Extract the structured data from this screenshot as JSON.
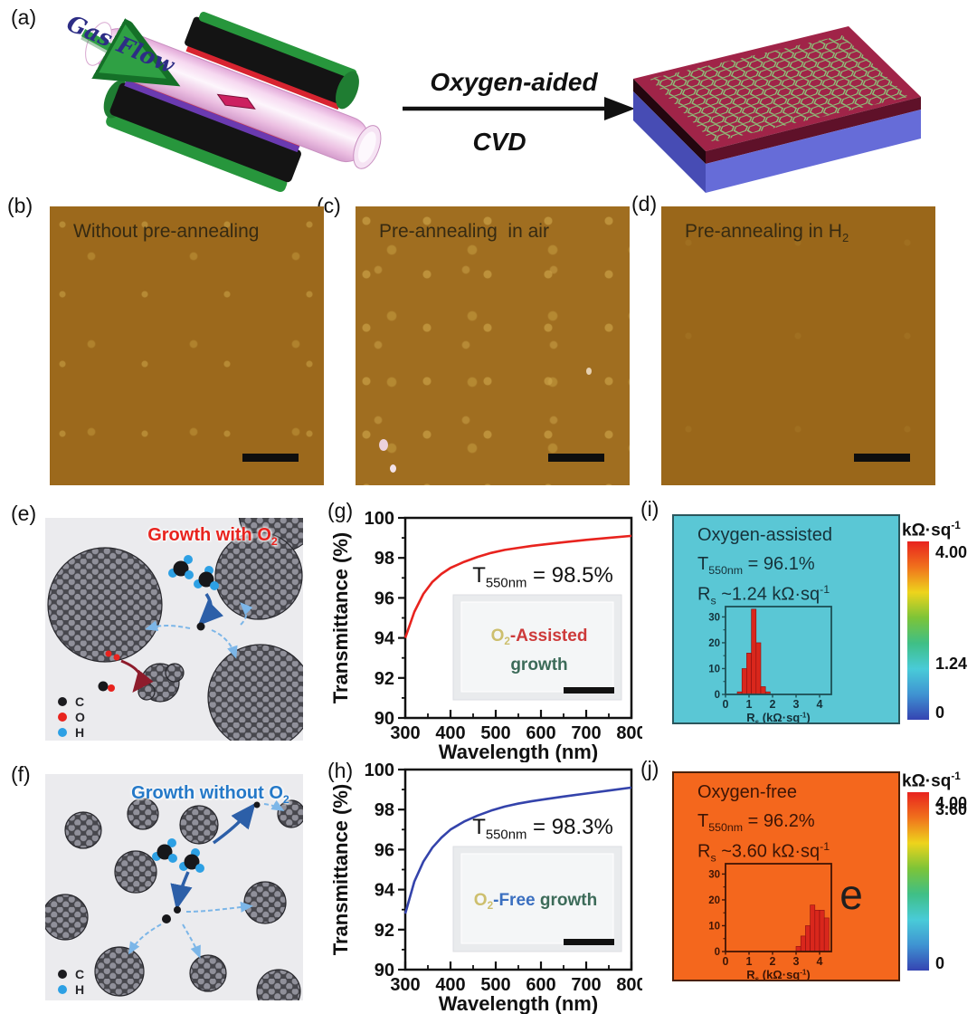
{
  "panels": {
    "a": {
      "label": "(a)",
      "gas_flow": "Gas Flow",
      "process_top": "Oxygen-aided",
      "process_bottom": "CVD"
    },
    "b": {
      "label": "(b)",
      "caption": "Without pre-annealing"
    },
    "c": {
      "label": "(c)",
      "caption": "Pre-annealing  in air"
    },
    "d": {
      "label": "(d)",
      "caption": "Pre-annealing in H_{2}"
    },
    "e": {
      "label": "(e)",
      "title": "Growth with O_{2}",
      "title_color": "#e8231e",
      "legend": [
        {
          "symbol": "C",
          "color": "#1b1b1f"
        },
        {
          "symbol": "O",
          "color": "#e8231e"
        },
        {
          "symbol": "H",
          "color": "#2da0e4"
        }
      ]
    },
    "f": {
      "label": "(f)",
      "title": "Growth without O_{2}",
      "title_color": "#2579c8",
      "legend": [
        {
          "symbol": "C",
          "color": "#1b1b1f"
        },
        {
          "symbol": "H",
          "color": "#2da0e4"
        }
      ]
    },
    "g": {
      "label": "(g)"
    },
    "h": {
      "label": "(h)"
    },
    "i": {
      "label": "(i)",
      "map_color": "#5ac7d5",
      "border_color": "#2a565c",
      "text_color": "#16323a",
      "title": "Oxygen-assisted",
      "t550": "T_{550nm} = 96.1%",
      "rs": "R_{s} ~1.24 kΩ·sq^{-1}"
    },
    "j": {
      "label": "(j)",
      "map_color": "#f4671d",
      "border_color": "#4a2008",
      "text_color": "#3d1505",
      "title": "Oxygen-free",
      "t550": "T_{550nm} = 96.2%",
      "rs": "R_{s} ~3.60 kΩ·sq^{-1}"
    }
  },
  "chart_data": [
    {
      "id": "g",
      "type": "line",
      "xlabel": "Wavelength (nm)",
      "ylabel": "Transmittance (%)",
      "xlim": [
        300,
        800
      ],
      "ylim": [
        90,
        100
      ],
      "xticks": [
        300,
        400,
        500,
        600,
        700,
        800
      ],
      "yticks": [
        90,
        92,
        94,
        96,
        98,
        100
      ],
      "color": "#e8231e",
      "annotation": "T_{550nm} = 98.5%",
      "x": [
        300,
        320,
        340,
        360,
        380,
        400,
        430,
        460,
        490,
        520,
        550,
        580,
        610,
        650,
        700,
        750,
        800
      ],
      "y": [
        94.0,
        95.3,
        96.2,
        96.8,
        97.2,
        97.5,
        97.8,
        98.05,
        98.25,
        98.4,
        98.5,
        98.6,
        98.68,
        98.78,
        98.9,
        99.0,
        99.1
      ],
      "inset": {
        "lines": [
          [
            {
              "text": "O_{2}",
              "color": "#cdbf6e"
            },
            {
              "text": "-Assisted",
              "color": "#cd3a3a"
            }
          ],
          [
            {
              "text": "growth",
              "color": "#3c6b59"
            }
          ]
        ]
      }
    },
    {
      "id": "h",
      "type": "line",
      "xlabel": "Wavelength (nm)",
      "ylabel": "Transmittance (%)",
      "xlim": [
        300,
        800
      ],
      "ylim": [
        90,
        100
      ],
      "xticks": [
        300,
        400,
        500,
        600,
        700,
        800
      ],
      "yticks": [
        90,
        92,
        94,
        96,
        98,
        100
      ],
      "color": "#3443ab",
      "annotation": "T_{550nm} = 98.3%",
      "x": [
        300,
        320,
        340,
        360,
        380,
        400,
        430,
        460,
        490,
        520,
        550,
        580,
        610,
        650,
        700,
        750,
        800
      ],
      "y": [
        92.8,
        94.4,
        95.4,
        96.1,
        96.6,
        97.0,
        97.4,
        97.7,
        97.95,
        98.15,
        98.3,
        98.42,
        98.52,
        98.65,
        98.8,
        98.95,
        99.1
      ],
      "inset": {
        "lines": [
          [
            {
              "text": "O_{2}",
              "color": "#cdbf6e"
            },
            {
              "text": "-Free",
              "color": "#3a6fc0"
            },
            {
              "text": " growth",
              "color": "#3c6b59"
            }
          ]
        ]
      }
    },
    {
      "id": "i_hist",
      "type": "histogram",
      "bar_color": "#d9271c",
      "border_color": "#1d4f55",
      "tick_color": "#14313a",
      "xlabel": "R_{s} (kΩ·sq^{-1})",
      "xlim": [
        0,
        4.5
      ],
      "ylim": [
        0,
        34
      ],
      "xticks": [
        0,
        1,
        2,
        3,
        4
      ],
      "yticks": [
        0,
        10,
        20,
        30
      ],
      "bin_centers": [
        0.6,
        0.8,
        1.0,
        1.2,
        1.4,
        1.6,
        1.8
      ],
      "counts": [
        1,
        10,
        16,
        33,
        20,
        3,
        1
      ],
      "colorbar": {
        "title": "kΩ·sq^{-1}",
        "max_label": "4.00",
        "mid_label": "1.24",
        "mid_frac": 0.31,
        "min_label": "0",
        "stops": [
          "#e8231e",
          "#f0711c",
          "#eed41c",
          "#7cc438",
          "#3fbf86",
          "#49cbd8",
          "#3f93d2",
          "#3544b2"
        ]
      }
    },
    {
      "id": "j_hist",
      "type": "histogram",
      "bar_color": "#d9271c",
      "border_color": "#401505",
      "tick_color": "#3d1505",
      "xlabel": "R_{s} (kΩ·sq^{-1})",
      "xlim": [
        0,
        4.5
      ],
      "ylim": [
        0,
        34
      ],
      "xticks": [
        0,
        1,
        2,
        3,
        4
      ],
      "yticks": [
        0,
        10,
        20,
        30
      ],
      "bin_centers": [
        3.1,
        3.3,
        3.5,
        3.7,
        3.9,
        4.1,
        4.3
      ],
      "counts": [
        2,
        6,
        10,
        18,
        16,
        16,
        13
      ],
      "watermark": "e",
      "colorbar": {
        "title": "kΩ·sq^{-1}",
        "max_label": "4.00",
        "mid_label": "3.60",
        "mid_frac": 0.9,
        "min_label": "0",
        "stops": [
          "#e8231e",
          "#f0711c",
          "#eed41c",
          "#7cc438",
          "#3fbf86",
          "#49cbd8",
          "#3f93d2",
          "#3544b2"
        ]
      }
    }
  ]
}
